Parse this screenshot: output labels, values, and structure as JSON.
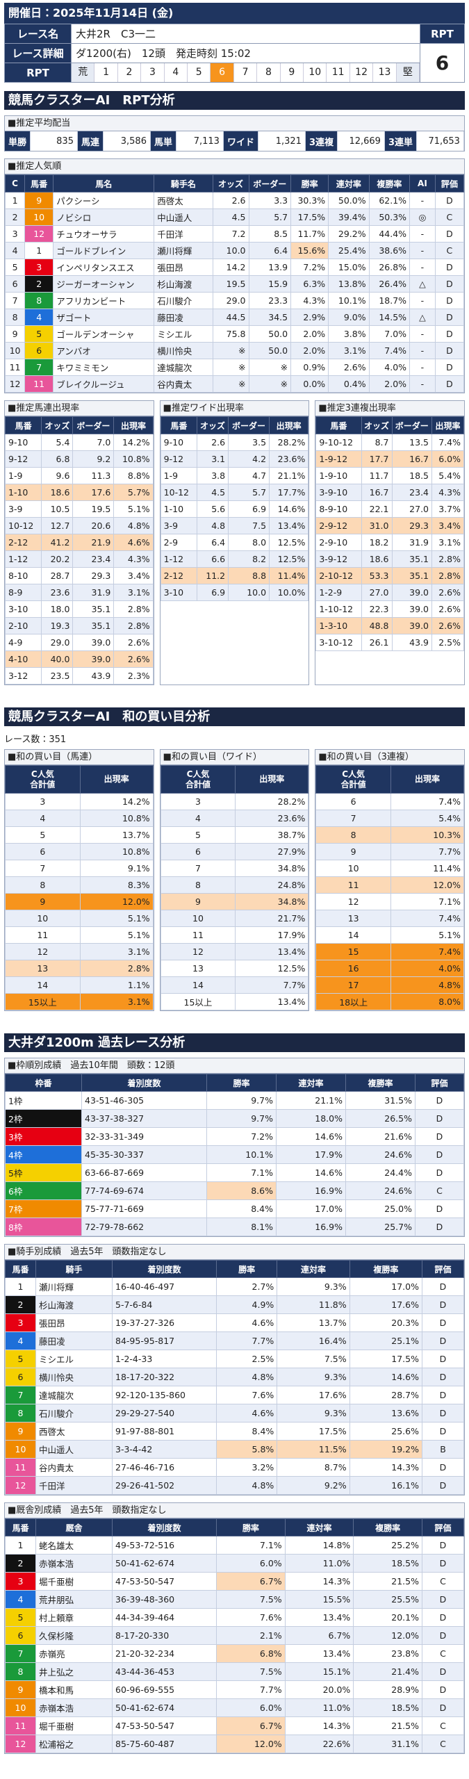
{
  "header": {
    "date": "開催日：2025年11月14日 (金)",
    "race_name_label": "レース名",
    "race_name": "大井2R　C3一二",
    "rpt_label": "RPT",
    "detail_label": "レース詳細",
    "detail": "ダ1200(右)　12頭　発走時刻 15:02",
    "rpt_value": "6",
    "scale_label": "RPT",
    "scale": [
      "荒",
      "1",
      "2",
      "3",
      "4",
      "5",
      "6",
      "7",
      "8",
      "9",
      "10",
      "11",
      "12",
      "13",
      "堅"
    ]
  },
  "rpt_analysis": {
    "title": "競馬クラスターAI　RPT分析",
    "payout": {
      "title": "■推定平均配当",
      "items": [
        {
          "label": "単勝",
          "value": "835"
        },
        {
          "label": "馬連",
          "value": "3,586"
        },
        {
          "label": "馬単",
          "value": "7,113"
        },
        {
          "label": "ワイド",
          "value": "1,321"
        },
        {
          "label": "3連複",
          "value": "12,669"
        },
        {
          "label": "3連単",
          "value": "71,653"
        }
      ]
    },
    "popularity": {
      "title": "■推定人気順",
      "columns": [
        "C",
        "馬番",
        "馬名",
        "騎手名",
        "オッズ",
        "ボーダー",
        "勝率",
        "連対率",
        "複勝率",
        "AI",
        "評価"
      ],
      "rows": [
        [
          "1",
          "9",
          "パクシーシ",
          "西啓太",
          "2.6",
          "3.3",
          "30.3%",
          "50.0%",
          "62.1%",
          "-",
          "D"
        ],
        [
          "2",
          "10",
          "ノビシロ",
          "中山遥人",
          "4.5",
          "5.7",
          "17.5%",
          "39.4%",
          "50.3%",
          "◎",
          "C"
        ],
        [
          "3",
          "12",
          "チュウオーサラ",
          "千田洋",
          "7.2",
          "8.5",
          "11.7%",
          "29.2%",
          "44.4%",
          "-",
          "D"
        ],
        [
          "4",
          "1",
          "ゴールドブレイン",
          "瀬川将輝",
          "10.0",
          "6.4",
          "15.6%",
          "25.4%",
          "38.6%",
          "-",
          "C"
        ],
        [
          "5",
          "3",
          "インペリタンスエス",
          "張田昂",
          "14.2",
          "13.9",
          "7.2%",
          "15.0%",
          "26.8%",
          "-",
          "D"
        ],
        [
          "6",
          "2",
          "ジーガーオーシャン",
          "杉山海渡",
          "19.5",
          "15.9",
          "6.3%",
          "13.8%",
          "26.4%",
          "△",
          "D"
        ],
        [
          "7",
          "8",
          "アフリカンビート",
          "石川駿介",
          "29.0",
          "23.3",
          "4.3%",
          "10.1%",
          "18.7%",
          "-",
          "D"
        ],
        [
          "8",
          "4",
          "ザゴート",
          "藤田凌",
          "44.5",
          "34.5",
          "2.9%",
          "9.0%",
          "14.5%",
          "△",
          "D"
        ],
        [
          "9",
          "5",
          "ゴールデンオーシャ",
          "ミシエル",
          "75.8",
          "50.0",
          "2.0%",
          "3.8%",
          "7.0%",
          "-",
          "D"
        ],
        [
          "10",
          "6",
          "アンバオ",
          "横川怜央",
          "※",
          "50.0",
          "2.0%",
          "3.1%",
          "7.4%",
          "-",
          "D"
        ],
        [
          "11",
          "7",
          "キワミミモン",
          "達城龍次",
          "※",
          "※",
          "0.9%",
          "2.6%",
          "4.0%",
          "-",
          "D"
        ],
        [
          "12",
          "11",
          "ブレイクルージュ",
          "谷内貴太",
          "※",
          "※",
          "0.0%",
          "0.4%",
          "2.0%",
          "-",
          "D"
        ]
      ]
    },
    "quinella": {
      "title": "■推定馬連出現率",
      "columns": [
        "馬番",
        "オッズ",
        "ボーダー",
        "出現率"
      ],
      "rows": [
        [
          "9-10",
          "5.4",
          "7.0",
          "14.2%"
        ],
        [
          "9-12",
          "6.8",
          "9.2",
          "10.8%"
        ],
        [
          "1-9",
          "9.6",
          "11.3",
          "8.8%"
        ],
        [
          "1-10",
          "18.6",
          "17.6",
          "5.7%"
        ],
        [
          "3-9",
          "10.5",
          "19.5",
          "5.1%"
        ],
        [
          "10-12",
          "12.7",
          "20.6",
          "4.8%"
        ],
        [
          "2-12",
          "41.2",
          "21.9",
          "4.6%"
        ],
        [
          "1-12",
          "20.2",
          "23.4",
          "4.3%"
        ],
        [
          "8-10",
          "28.7",
          "29.3",
          "3.4%"
        ],
        [
          "8-9",
          "23.6",
          "31.9",
          "3.1%"
        ],
        [
          "3-10",
          "18.0",
          "35.1",
          "2.8%"
        ],
        [
          "2-10",
          "19.3",
          "35.1",
          "2.8%"
        ],
        [
          "4-9",
          "29.0",
          "39.0",
          "2.6%"
        ],
        [
          "4-10",
          "40.0",
          "39.0",
          "2.6%"
        ],
        [
          "3-12",
          "23.5",
          "43.9",
          "2.3%"
        ]
      ]
    },
    "wide": {
      "title": "■推定ワイド出現率",
      "columns": [
        "馬番",
        "オッズ",
        "ボーダー",
        "出現率"
      ],
      "rows": [
        [
          "9-10",
          "2.6",
          "3.5",
          "28.2%"
        ],
        [
          "9-12",
          "3.1",
          "4.2",
          "23.6%"
        ],
        [
          "1-9",
          "3.8",
          "4.7",
          "21.1%"
        ],
        [
          "10-12",
          "4.5",
          "5.7",
          "17.7%"
        ],
        [
          "1-10",
          "5.6",
          "6.9",
          "14.6%"
        ],
        [
          "3-9",
          "4.8",
          "7.5",
          "13.4%"
        ],
        [
          "2-9",
          "6.4",
          "8.0",
          "12.5%"
        ],
        [
          "1-12",
          "6.6",
          "8.2",
          "12.5%"
        ],
        [
          "2-12",
          "11.2",
          "8.8",
          "11.4%"
        ],
        [
          "3-10",
          "6.9",
          "10.0",
          "10.0%"
        ]
      ]
    },
    "trio": {
      "title": "■推定3連複出現率",
      "columns": [
        "馬番",
        "オッズ",
        "ボーダー",
        "出現率"
      ],
      "rows": [
        [
          "9-10-12",
          "8.7",
          "13.5",
          "7.4%"
        ],
        [
          "1-9-12",
          "17.7",
          "16.7",
          "6.0%"
        ],
        [
          "1-9-10",
          "11.7",
          "18.5",
          "5.4%"
        ],
        [
          "3-9-10",
          "16.7",
          "23.4",
          "4.3%"
        ],
        [
          "8-9-10",
          "22.1",
          "27.0",
          "3.7%"
        ],
        [
          "2-9-12",
          "31.0",
          "29.3",
          "3.4%"
        ],
        [
          "2-9-10",
          "18.2",
          "31.9",
          "3.1%"
        ],
        [
          "3-9-12",
          "18.6",
          "35.1",
          "2.8%"
        ],
        [
          "2-10-12",
          "53.3",
          "35.1",
          "2.8%"
        ],
        [
          "1-2-9",
          "27.0",
          "39.0",
          "2.6%"
        ],
        [
          "1-10-12",
          "22.3",
          "39.0",
          "2.6%"
        ],
        [
          "1-3-10",
          "48.8",
          "39.0",
          "2.6%"
        ],
        [
          "3-10-12",
          "26.1",
          "43.9",
          "2.5%"
        ]
      ]
    }
  },
  "sum_analysis": {
    "title": "競馬クラスターAI　和の買い目分析",
    "race_count": "レース数：351",
    "quinella": {
      "title": "■和の買い目（馬連）",
      "columns": [
        "C人気合計値",
        "出現率"
      ],
      "rows": [
        [
          "3",
          "14.2%"
        ],
        [
          "4",
          "10.8%"
        ],
        [
          "5",
          "13.7%"
        ],
        [
          "6",
          "10.8%"
        ],
        [
          "7",
          "9.1%"
        ],
        [
          "8",
          "8.3%"
        ],
        [
          "9",
          "12.0%"
        ],
        [
          "10",
          "5.1%"
        ],
        [
          "11",
          "5.1%"
        ],
        [
          "12",
          "3.1%"
        ],
        [
          "13",
          "2.8%"
        ],
        [
          "14",
          "1.1%"
        ],
        [
          "15以上",
          "3.1%"
        ]
      ]
    },
    "wide": {
      "title": "■和の買い目（ワイド）",
      "columns": [
        "C人気合計値",
        "出現率"
      ],
      "rows": [
        [
          "3",
          "28.2%"
        ],
        [
          "4",
          "23.6%"
        ],
        [
          "5",
          "38.7%"
        ],
        [
          "6",
          "27.9%"
        ],
        [
          "7",
          "34.8%"
        ],
        [
          "8",
          "24.8%"
        ],
        [
          "9",
          "34.8%"
        ],
        [
          "10",
          "21.7%"
        ],
        [
          "11",
          "17.9%"
        ],
        [
          "12",
          "13.4%"
        ],
        [
          "13",
          "12.5%"
        ],
        [
          "14",
          "7.7%"
        ],
        [
          "15以上",
          "13.4%"
        ]
      ]
    },
    "trio": {
      "title": "■和の買い目（3連複）",
      "columns": [
        "C人気合計値",
        "出現率"
      ],
      "rows": [
        [
          "6",
          "7.4%"
        ],
        [
          "7",
          "5.4%"
        ],
        [
          "8",
          "10.3%"
        ],
        [
          "9",
          "7.7%"
        ],
        [
          "10",
          "11.4%"
        ],
        [
          "11",
          "12.0%"
        ],
        [
          "12",
          "7.1%"
        ],
        [
          "13",
          "7.4%"
        ],
        [
          "14",
          "5.1%"
        ],
        [
          "15",
          "7.4%"
        ],
        [
          "16",
          "4.0%"
        ],
        [
          "17",
          "4.8%"
        ],
        [
          "18以上",
          "8.0%"
        ]
      ]
    }
  },
  "past_analysis": {
    "title": "大井ダ1200m 過去レース分析",
    "frame": {
      "title": "■枠順別成績　過去10年間　頭数：12頭",
      "columns": [
        "枠番",
        "着別度数",
        "勝率",
        "連対率",
        "複勝率",
        "評価"
      ],
      "rows": [
        [
          "1枠",
          "43-51-46-305",
          "9.7%",
          "21.1%",
          "31.5%",
          "D"
        ],
        [
          "2枠",
          "43-37-38-327",
          "9.7%",
          "18.0%",
          "26.5%",
          "D"
        ],
        [
          "3枠",
          "32-33-31-349",
          "7.2%",
          "14.6%",
          "21.6%",
          "D"
        ],
        [
          "4枠",
          "45-35-30-337",
          "10.1%",
          "17.9%",
          "24.6%",
          "D"
        ],
        [
          "5枠",
          "63-66-87-669",
          "7.1%",
          "14.6%",
          "24.4%",
          "D"
        ],
        [
          "6枠",
          "77-74-69-674",
          "8.6%",
          "16.9%",
          "24.6%",
          "C"
        ],
        [
          "7枠",
          "75-77-71-669",
          "8.4%",
          "17.0%",
          "25.0%",
          "D"
        ],
        [
          "8枠",
          "72-79-78-662",
          "8.1%",
          "16.9%",
          "25.7%",
          "D"
        ]
      ]
    },
    "jockey": {
      "title": "■騎手別成績　過去5年　頭数指定なし",
      "columns": [
        "馬番",
        "騎手",
        "着別度数",
        "勝率",
        "連対率",
        "複勝率",
        "評価"
      ],
      "rows": [
        [
          "1",
          "瀬川将輝",
          "16-40-46-497",
          "2.7%",
          "9.3%",
          "17.0%",
          "D"
        ],
        [
          "2",
          "杉山海渡",
          "5-7-6-84",
          "4.9%",
          "11.8%",
          "17.6%",
          "D"
        ],
        [
          "3",
          "張田昂",
          "19-37-27-326",
          "4.6%",
          "13.7%",
          "20.3%",
          "D"
        ],
        [
          "4",
          "藤田凌",
          "84-95-95-817",
          "7.7%",
          "16.4%",
          "25.1%",
          "D"
        ],
        [
          "5",
          "ミシエル",
          "1-2-4-33",
          "2.5%",
          "7.5%",
          "17.5%",
          "D"
        ],
        [
          "6",
          "横川怜央",
          "18-17-20-322",
          "4.8%",
          "9.3%",
          "14.6%",
          "D"
        ],
        [
          "7",
          "達城龍次",
          "92-120-135-860",
          "7.6%",
          "17.6%",
          "28.7%",
          "D"
        ],
        [
          "8",
          "石川駿介",
          "29-29-27-540",
          "4.6%",
          "9.3%",
          "13.6%",
          "D"
        ],
        [
          "9",
          "西啓太",
          "91-97-88-801",
          "8.4%",
          "17.5%",
          "25.6%",
          "D"
        ],
        [
          "10",
          "中山遥人",
          "3-3-4-42",
          "5.8%",
          "11.5%",
          "19.2%",
          "B"
        ],
        [
          "11",
          "谷内貴太",
          "27-46-46-716",
          "3.2%",
          "8.7%",
          "14.3%",
          "D"
        ],
        [
          "12",
          "千田洋",
          "29-26-41-502",
          "4.8%",
          "9.2%",
          "16.1%",
          "D"
        ]
      ]
    },
    "stable": {
      "title": "■厩舎別成績　過去5年　頭数指定なし",
      "columns": [
        "馬番",
        "厩舎",
        "着別度数",
        "勝率",
        "連対率",
        "複勝率",
        "評価"
      ],
      "rows": [
        [
          "1",
          "蛯名雄太",
          "49-53-72-516",
          "7.1%",
          "14.8%",
          "25.2%",
          "D"
        ],
        [
          "2",
          "赤嶺本浩",
          "50-41-62-674",
          "6.0%",
          "11.0%",
          "18.5%",
          "D"
        ],
        [
          "3",
          "堀千亜樹",
          "47-53-50-547",
          "6.7%",
          "14.3%",
          "21.5%",
          "C"
        ],
        [
          "4",
          "荒井朋弘",
          "36-39-48-360",
          "7.5%",
          "15.5%",
          "25.5%",
          "D"
        ],
        [
          "5",
          "村上頼章",
          "44-34-39-464",
          "7.6%",
          "13.4%",
          "20.1%",
          "D"
        ],
        [
          "6",
          "久保杉隆",
          "8-17-20-330",
          "2.1%",
          "6.7%",
          "12.0%",
          "D"
        ],
        [
          "7",
          "赤嶺亮",
          "21-20-32-234",
          "6.8%",
          "13.4%",
          "23.8%",
          "C"
        ],
        [
          "8",
          "井上弘之",
          "43-44-36-453",
          "7.5%",
          "15.1%",
          "21.4%",
          "D"
        ],
        [
          "9",
          "橋本和馬",
          "60-96-69-555",
          "7.7%",
          "20.0%",
          "28.9%",
          "D"
        ],
        [
          "10",
          "赤嶺本浩",
          "50-41-62-674",
          "6.0%",
          "11.0%",
          "18.5%",
          "D"
        ],
        [
          "11",
          "堀千亜樹",
          "47-53-50-547",
          "6.7%",
          "14.3%",
          "21.5%",
          "C"
        ],
        [
          "12",
          "松浦裕之",
          "85-75-60-487",
          "12.0%",
          "22.6%",
          "31.1%",
          "C"
        ]
      ]
    }
  }
}
